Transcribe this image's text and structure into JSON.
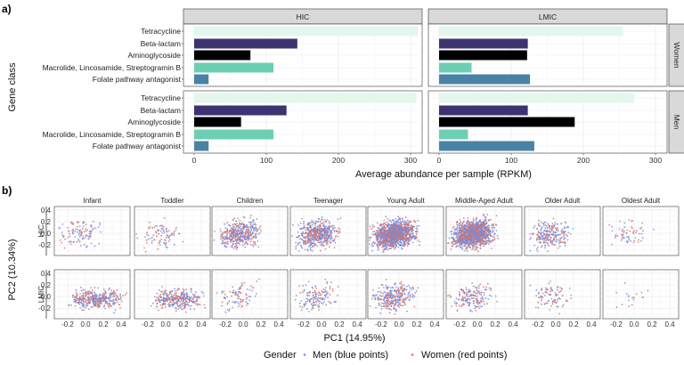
{
  "panel_labels": {
    "a": "a)",
    "b": "b)"
  },
  "chart_data": [
    {
      "type": "bar",
      "orientation": "horizontal",
      "panel": "a)",
      "xlabel": "Average abundance per sample (RPKM)",
      "ylabel": "Gene class",
      "xlim": [
        0,
        320
      ],
      "xticks": [
        0,
        100,
        200,
        300
      ],
      "grid": true,
      "categories": [
        "Tetracycline",
        "Beta-lactam",
        "Aminoglycoside",
        "Macrolide, Lincosamide, Streptogramin B",
        "Folate pathway antagonist"
      ],
      "colors": {
        "Tetracycline": "#e3f7ec",
        "Beta-lactam": "#3d3370",
        "Aminoglycoside": "#000000",
        "Macrolide, Lincosamide, Streptogramin B": "#6ccfb4",
        "Folate pathway antagonist": "#4a82a6"
      },
      "facet_columns": [
        "HIC",
        "LMIC"
      ],
      "facet_rows": [
        "Women",
        "Men"
      ],
      "panels": [
        {
          "column": "HIC",
          "row": "Women",
          "values": [
            310,
            143,
            78,
            110,
            20
          ]
        },
        {
          "column": "LMIC",
          "row": "Women",
          "values": [
            255,
            123,
            122,
            45,
            126
          ]
        },
        {
          "column": "HIC",
          "row": "Men",
          "values": [
            308,
            128,
            65,
            110,
            20
          ]
        },
        {
          "column": "LMIC",
          "row": "Men",
          "values": [
            270,
            123,
            188,
            40,
            132
          ]
        }
      ]
    },
    {
      "type": "scatter",
      "panel": "b)",
      "xlabel": "PC1 (14.95%)",
      "ylabel": "PC2 (10.34%)",
      "xticks": [
        "-0.2",
        "0.0",
        "0.2",
        "0.4"
      ],
      "yticks": [
        "0.4",
        "0.2",
        "0.0",
        "-0.2"
      ],
      "xlim": [
        -0.35,
        0.5
      ],
      "ylim": [
        -0.38,
        0.46
      ],
      "grid": true,
      "facet_columns": [
        "Infant",
        "Toddler",
        "Children",
        "Teenager",
        "Young Adult",
        "Middle-Aged Adult",
        "Older Adult",
        "Oldest Adult"
      ],
      "facet_rows": [
        "HIC",
        "LMIC"
      ],
      "legend_title": "Gender",
      "legend_position": "bottom",
      "series": [
        {
          "name": "Men (blue points)",
          "color": "#6f8fe8"
        },
        {
          "name": "Women (red points)",
          "color": "#d4736b"
        }
      ],
      "panel_density": {
        "HIC": [
          110,
          90,
          420,
          520,
          1300,
          1300,
          240,
          60
        ],
        "LMIC": [
          380,
          320,
          90,
          140,
          300,
          170,
          90,
          18
        ]
      }
    }
  ]
}
